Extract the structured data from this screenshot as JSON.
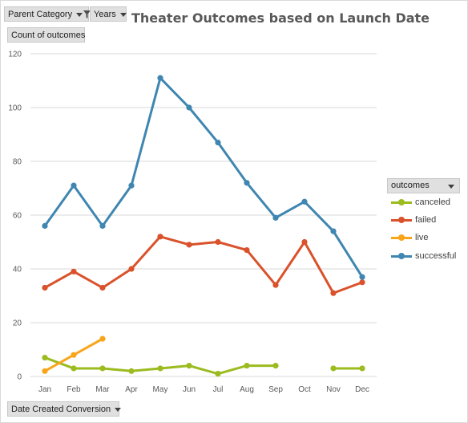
{
  "controls": {
    "parent_category_label": "Parent Category",
    "years_label": "Years",
    "count_label": "Count of outcomes",
    "date_created_label": "Date Created Conversion",
    "legend_header_label": "outcomes"
  },
  "colors": {
    "canceled": "#9bbb1f",
    "failed": "#d9522b",
    "live": "#f9a51a",
    "successful": "#3f86b0",
    "grid": "#d9d9d9"
  },
  "chart_data": {
    "type": "line",
    "title": "Theater Outcomes based on Launch Date",
    "xlabel": "",
    "ylabel": "",
    "categories": [
      "Jan",
      "Feb",
      "Mar",
      "Apr",
      "May",
      "Jun",
      "Jul",
      "Aug",
      "Sep",
      "Oct",
      "Nov",
      "Dec"
    ],
    "ylim": [
      0,
      120
    ],
    "yticks": [
      0,
      20,
      40,
      60,
      80,
      100,
      120
    ],
    "grid": true,
    "legend_position": "right",
    "series": [
      {
        "name": "canceled",
        "values": [
          7,
          3,
          3,
          2,
          3,
          4,
          1,
          4,
          4,
          null,
          3,
          3
        ]
      },
      {
        "name": "failed",
        "values": [
          33,
          39,
          33,
          40,
          52,
          49,
          50,
          47,
          34,
          50,
          31,
          35
        ]
      },
      {
        "name": "live",
        "values": [
          2,
          8,
          14,
          null,
          null,
          null,
          null,
          null,
          null,
          null,
          null,
          null
        ]
      },
      {
        "name": "successful",
        "values": [
          56,
          71,
          56,
          71,
          111,
          100,
          87,
          72,
          59,
          65,
          54,
          37
        ]
      }
    ]
  }
}
